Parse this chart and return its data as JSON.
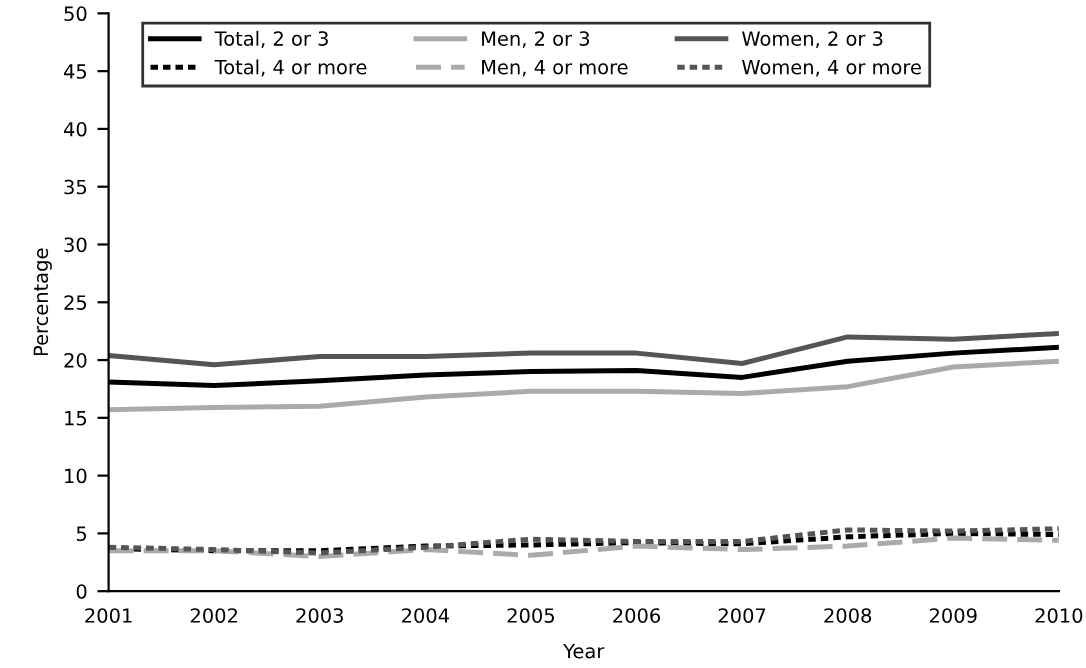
{
  "chart_data": {
    "type": "line",
    "xlabel": "Year",
    "ylabel": "Percentage",
    "x": [
      2001,
      2002,
      2003,
      2004,
      2005,
      2006,
      2007,
      2008,
      2009,
      2010
    ],
    "xlim": [
      2001,
      2010
    ],
    "xticks": [
      2001,
      2002,
      2003,
      2004,
      2005,
      2006,
      2007,
      2008,
      2009,
      2010
    ],
    "ylim": [
      0,
      50
    ],
    "yticks": [
      0,
      5,
      10,
      15,
      20,
      25,
      30,
      35,
      40,
      45,
      50
    ],
    "grid": false,
    "legend": "top",
    "marker": "none",
    "series": [
      {
        "name": "Total, 2 or 3",
        "color": "#000000",
        "line_style": "solid",
        "values": [
          18.1,
          17.8,
          18.2,
          18.7,
          19.0,
          19.1,
          18.5,
          19.9,
          20.6,
          21.1
        ]
      },
      {
        "name": "Total, 4 or more",
        "color": "#000000",
        "line_style": "dotted",
        "values": [
          3.7,
          3.5,
          3.5,
          3.9,
          4.0,
          4.2,
          4.1,
          4.7,
          5.0,
          4.9
        ]
      },
      {
        "name": "Men, 2 or 3",
        "color": "#aaaaaa",
        "line_style": "solid",
        "values": [
          15.7,
          15.9,
          16.0,
          16.8,
          17.3,
          17.3,
          17.1,
          17.7,
          19.4,
          19.9
        ]
      },
      {
        "name": "Men, 4 or more",
        "color": "#aaaaaa",
        "line_style": "dashed",
        "values": [
          3.5,
          3.5,
          3.0,
          3.6,
          3.1,
          3.9,
          3.6,
          3.9,
          4.6,
          4.4
        ]
      },
      {
        "name": "Women, 2 or 3",
        "color": "#555555",
        "line_style": "solid",
        "values": [
          20.4,
          19.6,
          20.3,
          20.3,
          20.6,
          20.6,
          19.7,
          22.0,
          21.8,
          22.3
        ]
      },
      {
        "name": "Women, 4 or more",
        "color": "#555555",
        "line_style": "dotted",
        "values": [
          3.8,
          3.6,
          3.3,
          3.8,
          4.5,
          4.3,
          4.3,
          5.3,
          5.2,
          5.4
        ]
      }
    ]
  }
}
